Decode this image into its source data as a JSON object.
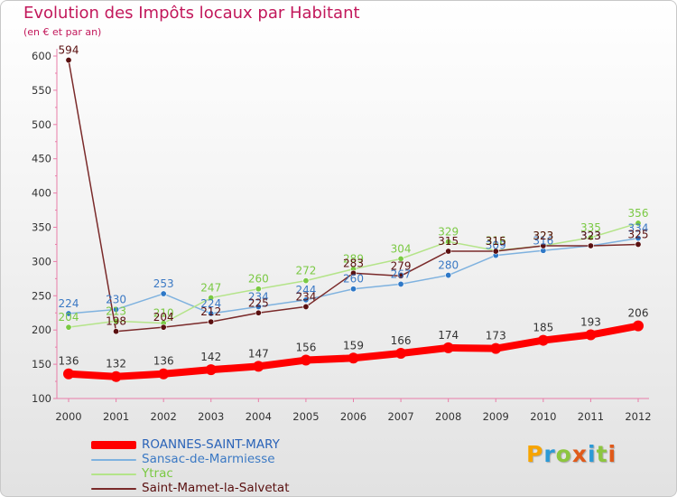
{
  "title": "Evolution des Impôts locaux par Habitant",
  "subtitle": "(en € et par an)",
  "logo": {
    "letters": [
      "P",
      "r",
      "o",
      "x",
      "i",
      "t",
      "i"
    ],
    "colors": [
      "#f7a400",
      "#2c9ad6",
      "#8dc63f",
      "#e05a1a",
      "#2c9ad6",
      "#8dc63f",
      "#e05a1a"
    ]
  },
  "chart_data": {
    "type": "line",
    "title": "Evolution des Impôts locaux par Habitant",
    "ylabel": "(en € et par an)",
    "xlabel": "",
    "ylim": [
      100,
      600
    ],
    "yticks": [
      100,
      150,
      200,
      250,
      300,
      350,
      400,
      450,
      500,
      550,
      600
    ],
    "grid": false,
    "x": [
      "2000",
      "2001",
      "2002",
      "2003",
      "2004",
      "2005",
      "2006",
      "2007",
      "2008",
      "2009",
      "2010",
      "2011",
      "2012"
    ],
    "series": [
      {
        "name": "ROANNES-SAINT-MARY",
        "color": "#ff0000",
        "text_color": "#ff0000",
        "marker": "#ff0000",
        "values": [
          136,
          132,
          136,
          142,
          147,
          156,
          159,
          166,
          174,
          173,
          185,
          193,
          206
        ]
      },
      {
        "name": "Sansac-de-Marmiesse",
        "color": "#7fb2df",
        "text_color": "#3b79c4",
        "marker": "#2e78c7",
        "values": [
          224,
          230,
          253,
          224,
          234,
          244,
          260,
          267,
          280,
          309,
          316,
          323,
          334
        ]
      },
      {
        "name": "Ytrac",
        "color": "#b4e489",
        "text_color": "#7ac943",
        "marker": "#7ac943",
        "values": [
          204,
          213,
          210,
          247,
          260,
          272,
          289,
          304,
          329,
          316,
          323,
          335,
          356
        ]
      },
      {
        "name": "Saint-Mamet-la-Salvetat",
        "color": "#7a2a2a",
        "text_color": "#5a1010",
        "marker": "#5a1010",
        "values": [
          594,
          198,
          204,
          212,
          225,
          234,
          283,
          279,
          315,
          315,
          323,
          323,
          325
        ]
      }
    ]
  }
}
